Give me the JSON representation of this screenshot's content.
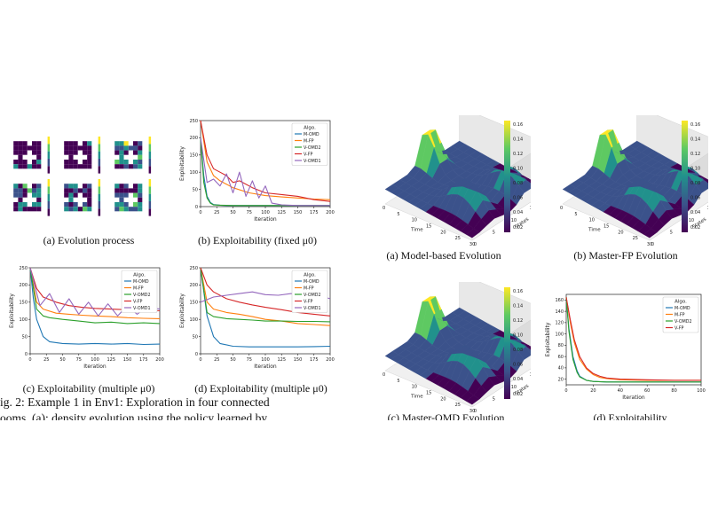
{
  "palette": {
    "M-OMD": "#1f77b4",
    "M-FP": "#ff7f0e",
    "V-OMD2": "#2ca02c",
    "V-FP": "#d62728",
    "V-OMD1": "#9467bd",
    "viridis": [
      "#440154",
      "#3b528b",
      "#21918c",
      "#5ec962",
      "#fde725"
    ]
  },
  "captions": {
    "a1": "(a) Evolution process",
    "b1": "(b) Exploitability (fixed μ0)",
    "c1": "(c) Exploitability (multiple μ0)",
    "d1": "(d) Exploitability (multiple μ0)",
    "a2": "(a) Model-based Evolution",
    "b2": "(b) Master-FP Evolution",
    "c2": "(c) Master-OMD Evolution",
    "d2": "(d) Exploitability"
  },
  "body_text": {
    "line1": "ig. 2: Example 1 in Env1: Exploration in four connected",
    "line2": "ooms. (a): density evolution using the policy learned by"
  },
  "chart_data": [
    {
      "id": "left-b",
      "type": "line",
      "xlabel": "Iteration",
      "ylabel": "Exploitability",
      "xlim": [
        0,
        200
      ],
      "ylim": [
        0,
        250
      ],
      "xticks": [
        0,
        25,
        50,
        75,
        100,
        125,
        150,
        175,
        200
      ],
      "yticks": [
        0,
        50,
        100,
        150,
        200,
        250
      ],
      "legend": {
        "title": "Algo.",
        "placement": "top-right"
      },
      "series": [
        {
          "name": "M-OMD",
          "x": [
            0,
            5,
            10,
            15,
            20,
            30,
            40,
            60,
            100,
            150,
            200
          ],
          "y": [
            200,
            90,
            30,
            12,
            6,
            4,
            3,
            3,
            3,
            3,
            3
          ]
        },
        {
          "name": "M-FP",
          "x": [
            0,
            10,
            20,
            30,
            50,
            75,
            100,
            125,
            150,
            175,
            200
          ],
          "y": [
            250,
            130,
            90,
            75,
            55,
            40,
            32,
            28,
            25,
            22,
            20
          ]
        },
        {
          "name": "V-OMD2",
          "x": [
            0,
            5,
            10,
            15,
            20,
            30,
            50,
            100,
            150,
            200
          ],
          "y": [
            200,
            70,
            25,
            10,
            5,
            4,
            3,
            3,
            3,
            3
          ]
        },
        {
          "name": "V-FP",
          "x": [
            0,
            10,
            20,
            30,
            40,
            50,
            60,
            80,
            100,
            125,
            150,
            175,
            200
          ],
          "y": [
            250,
            150,
            110,
            100,
            90,
            70,
            75,
            55,
            40,
            35,
            30,
            20,
            15
          ]
        },
        {
          "name": "V-OMD1",
          "x": [
            0,
            10,
            20,
            30,
            40,
            50,
            60,
            70,
            80,
            90,
            100,
            110,
            125,
            150,
            200
          ],
          "y": [
            200,
            70,
            80,
            60,
            95,
            40,
            100,
            30,
            75,
            25,
            60,
            10,
            5,
            3,
            3
          ]
        }
      ]
    },
    {
      "id": "left-c",
      "type": "line",
      "xlabel": "Iteration",
      "ylabel": "Exploitability",
      "xlim": [
        0,
        200
      ],
      "ylim": [
        0,
        250
      ],
      "xticks": [
        0,
        25,
        50,
        75,
        100,
        125,
        150,
        175,
        200
      ],
      "yticks": [
        0,
        50,
        100,
        150,
        200,
        250
      ],
      "legend": {
        "title": "Algo.",
        "placement": "top-right"
      },
      "series": [
        {
          "name": "M-OMD",
          "x": [
            0,
            5,
            10,
            20,
            30,
            50,
            75,
            100,
            125,
            150,
            175,
            200
          ],
          "y": [
            250,
            160,
            100,
            50,
            35,
            30,
            28,
            30,
            28,
            30,
            27,
            28
          ]
        },
        {
          "name": "M-FP",
          "x": [
            0,
            10,
            20,
            40,
            60,
            80,
            100,
            125,
            150,
            175,
            200
          ],
          "y": [
            250,
            150,
            130,
            118,
            115,
            112,
            110,
            108,
            105,
            103,
            102
          ]
        },
        {
          "name": "V-OMD2",
          "x": [
            0,
            10,
            20,
            30,
            50,
            75,
            100,
            125,
            150,
            175,
            200
          ],
          "y": [
            250,
            130,
            110,
            105,
            100,
            95,
            90,
            92,
            88,
            90,
            88
          ]
        },
        {
          "name": "V-FP",
          "x": [
            0,
            10,
            20,
            40,
            60,
            80,
            100,
            125,
            150,
            175,
            200
          ],
          "y": [
            250,
            190,
            165,
            150,
            140,
            135,
            132,
            130,
            128,
            127,
            125
          ]
        },
        {
          "name": "V-OMD1",
          "x": [
            0,
            15,
            30,
            45,
            60,
            75,
            90,
            105,
            120,
            135,
            150,
            165,
            180,
            200
          ],
          "y": [
            250,
            140,
            175,
            120,
            160,
            115,
            150,
            110,
            145,
            110,
            140,
            115,
            135,
            130
          ]
        }
      ]
    },
    {
      "id": "left-d",
      "type": "line",
      "xlabel": "Iteration",
      "ylabel": "Exploitability",
      "xlim": [
        0,
        200
      ],
      "ylim": [
        0,
        250
      ],
      "xticks": [
        0,
        25,
        50,
        75,
        100,
        125,
        150,
        175,
        200
      ],
      "yticks": [
        0,
        50,
        100,
        150,
        200,
        250
      ],
      "legend": {
        "title": "Algo.",
        "placement": "top-right"
      },
      "series": [
        {
          "name": "M-OMD",
          "x": [
            0,
            10,
            20,
            30,
            50,
            75,
            100,
            125,
            150,
            175,
            200
          ],
          "y": [
            250,
            110,
            50,
            30,
            22,
            20,
            20,
            20,
            20,
            21,
            22
          ]
        },
        {
          "name": "M-FP",
          "x": [
            0,
            10,
            20,
            40,
            60,
            80,
            100,
            125,
            150,
            175,
            200
          ],
          "y": [
            250,
            150,
            130,
            120,
            115,
            108,
            100,
            95,
            88,
            85,
            82
          ]
        },
        {
          "name": "V-OMD2",
          "x": [
            0,
            10,
            20,
            40,
            60,
            80,
            100,
            125,
            150,
            175,
            200
          ],
          "y": [
            250,
            120,
            108,
            102,
            100,
            98,
            95,
            95,
            94,
            94,
            93
          ]
        },
        {
          "name": "V-FP",
          "x": [
            0,
            10,
            20,
            40,
            60,
            80,
            100,
            125,
            150,
            175,
            200
          ],
          "y": [
            250,
            200,
            180,
            160,
            150,
            142,
            135,
            128,
            120,
            115,
            110
          ]
        },
        {
          "name": "V-OMD1",
          "x": [
            0,
            20,
            40,
            60,
            80,
            100,
            120,
            140,
            160,
            180,
            200
          ],
          "y": [
            150,
            165,
            170,
            175,
            180,
            172,
            170,
            175,
            165,
            170,
            160
          ]
        }
      ]
    },
    {
      "id": "right-d",
      "type": "line",
      "xlabel": "Iteration",
      "ylabel": "Exploitability",
      "xlim": [
        0,
        100
      ],
      "ylim": [
        10,
        170
      ],
      "xticks": [
        0,
        20,
        40,
        60,
        80,
        100
      ],
      "yticks": [
        20,
        40,
        60,
        80,
        100,
        120,
        140,
        160
      ],
      "legend": {
        "title": "Algo.",
        "placement": "top-right"
      },
      "series": [
        {
          "name": "M-OMD",
          "x": [
            0,
            2,
            5,
            8,
            10,
            15,
            20,
            30,
            40,
            60,
            80,
            100
          ],
          "y": [
            165,
            110,
            60,
            35,
            25,
            18,
            16,
            15,
            15,
            15,
            15,
            15
          ]
        },
        {
          "name": "M-FP",
          "x": [
            0,
            3,
            6,
            10,
            15,
            20,
            25,
            30,
            40,
            60,
            80,
            100
          ],
          "y": [
            165,
            120,
            85,
            55,
            38,
            28,
            23,
            21,
            19,
            18,
            18,
            18
          ]
        },
        {
          "name": "V-OMD2",
          "x": [
            0,
            2,
            5,
            8,
            10,
            15,
            20,
            30,
            40,
            60,
            80,
            100
          ],
          "y": [
            165,
            105,
            55,
            32,
            24,
            18,
            16,
            15,
            15,
            15,
            15,
            15
          ]
        },
        {
          "name": "V-FP",
          "x": [
            0,
            3,
            6,
            10,
            15,
            20,
            25,
            30,
            40,
            60,
            80,
            100
          ],
          "y": [
            165,
            125,
            90,
            60,
            40,
            30,
            25,
            22,
            20,
            19,
            18,
            18
          ]
        }
      ]
    },
    {
      "id": "surface-a",
      "type": "heatmap",
      "xlabel": "Time",
      "ylabel": "States",
      "xticks": [
        0,
        5,
        10,
        15,
        20,
        25,
        30
      ],
      "yticks": [
        0,
        5,
        10,
        15,
        20
      ],
      "zticks": [
        "0.02",
        "0.05",
        "0.07",
        "0.08",
        "0.10",
        "0.1"
      ],
      "colorbar_ticks": [
        "0.16",
        "0.14",
        "0.12",
        "0.10",
        "0.08",
        "0.06",
        "0.04",
        "0.02"
      ]
    },
    {
      "id": "surface-b",
      "type": "heatmap",
      "xlabel": "Time",
      "ylabel": "States",
      "xticks": [
        0,
        5,
        10,
        15,
        20,
        25,
        30
      ],
      "yticks": [
        0,
        5,
        10,
        15,
        20
      ],
      "zticks": [
        "0.02",
        "0.05",
        "0.07",
        "0.08",
        "0.10",
        "0.1"
      ],
      "colorbar_ticks": [
        "0.16",
        "0.14",
        "0.12",
        "0.10",
        "0.08",
        "0.06",
        "0.04",
        "0.02"
      ]
    },
    {
      "id": "surface-c",
      "type": "heatmap",
      "xlabel": "Time",
      "ylabel": "States",
      "xticks": [
        0,
        5,
        10,
        15,
        20,
        25,
        30
      ],
      "yticks": [
        0,
        5,
        10,
        15,
        20
      ],
      "zticks": [
        "0.02",
        "0.05",
        "0.07",
        "0.08",
        "0.10",
        "0.1"
      ],
      "colorbar_ticks": [
        "0.16",
        "0.14",
        "0.12",
        "0.10",
        "0.08",
        "0.06",
        "0.04",
        "0.02"
      ]
    }
  ]
}
